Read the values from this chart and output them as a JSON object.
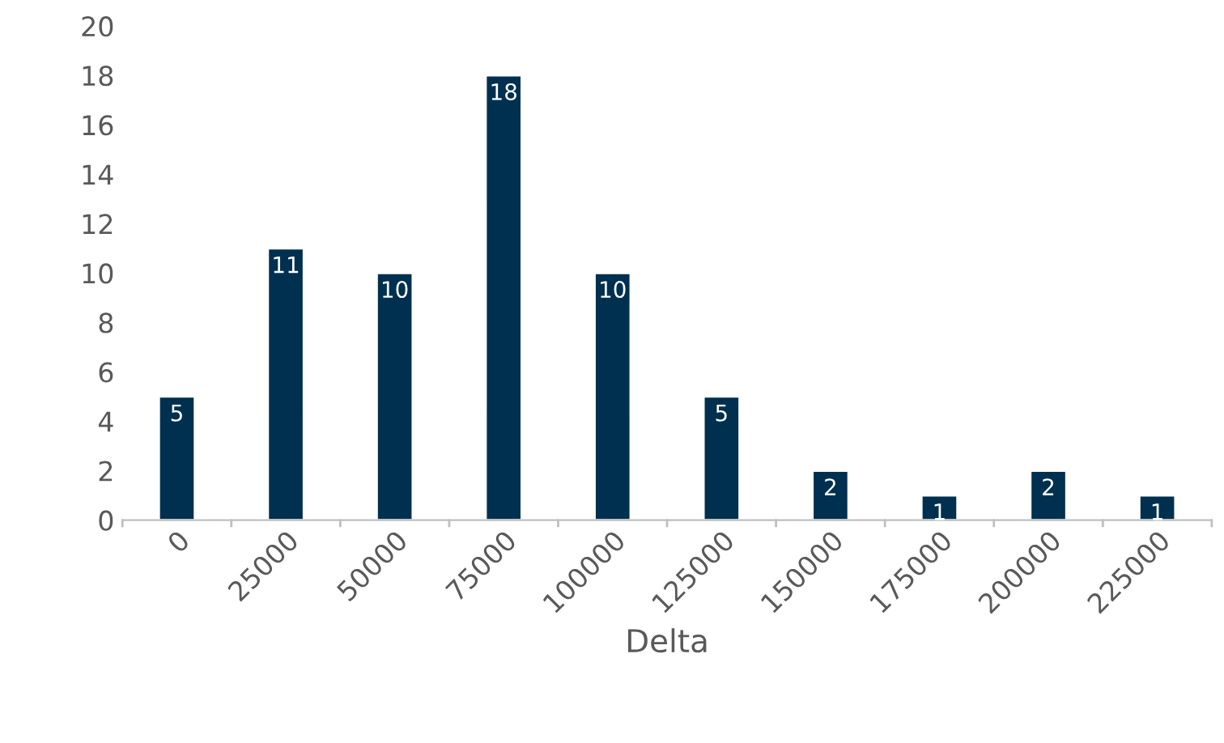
{
  "chart_data": {
    "type": "bar",
    "xlabel": "Delta",
    "categories": [
      "0",
      "25000",
      "50000",
      "75000",
      "100000",
      "125000",
      "150000",
      "175000",
      "200000",
      "225000"
    ],
    "values": [
      5,
      11,
      10,
      18,
      10,
      5,
      2,
      1,
      2,
      1
    ],
    "color": "#00304f",
    "ylim": [
      0,
      20
    ],
    "yticks": [
      0,
      2,
      4,
      6,
      8,
      10,
      12,
      14,
      16,
      18,
      20
    ],
    "data_labels": true,
    "grid": false
  }
}
